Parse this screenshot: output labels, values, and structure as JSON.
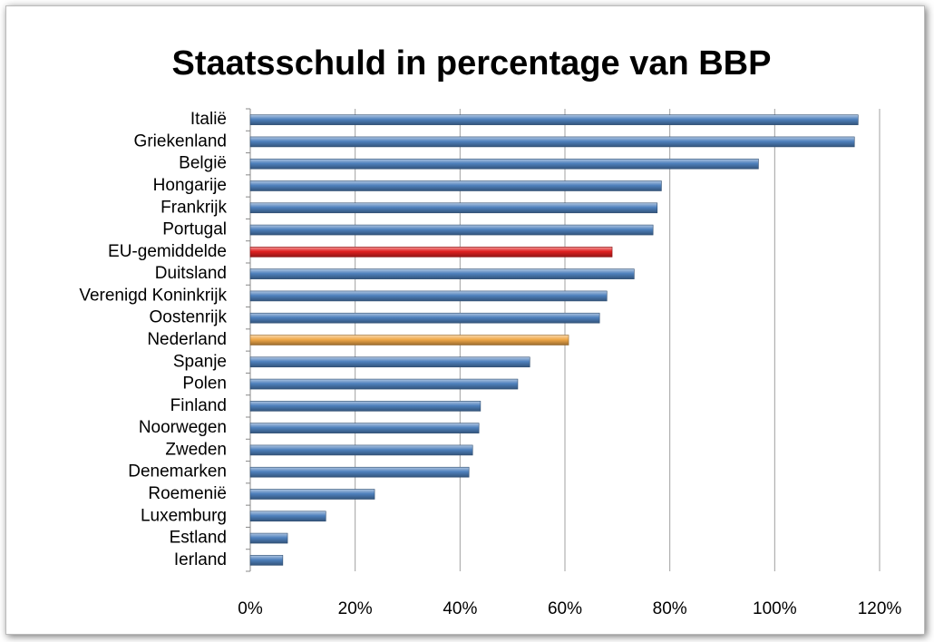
{
  "chart_data": {
    "type": "barh",
    "title": "Staatsschuld in percentage van BBP",
    "categories": [
      "Italië",
      "Griekenland",
      "België",
      "Hongarije",
      "Frankrijk",
      "Portugal",
      "EU-gemiddelde",
      "Duitsland",
      "Verenigd Koninkrijk",
      "Oostenrijk",
      "Nederland",
      "Spanje",
      "Polen",
      "Finland",
      "Noorwegen",
      "Zweden",
      "Denemarken",
      "Roemenië",
      "Luxemburg",
      "Estland",
      "Ierland"
    ],
    "values": [
      115.9,
      115.2,
      96.9,
      78.4,
      77.6,
      76.8,
      69,
      73.2,
      68,
      66.6,
      60.7,
      53.3,
      51,
      43.9,
      43.6,
      42.4,
      41.7,
      23.7,
      14.4,
      7.1,
      6.2
    ],
    "colors": [
      "#4f81bd",
      "#4f81bd",
      "#4f81bd",
      "#4f81bd",
      "#4f81bd",
      "#4f81bd",
      "#e02020",
      "#4f81bd",
      "#4f81bd",
      "#4f81bd",
      "#f0a848",
      "#4f81bd",
      "#4f81bd",
      "#4f81bd",
      "#4f81bd",
      "#4f81bd",
      "#4f81bd",
      "#4f81bd",
      "#4f81bd",
      "#4f81bd",
      "#4f81bd"
    ],
    "xlim": [
      0,
      120
    ],
    "xticks": [
      {
        "value": 0,
        "label": "0%"
      },
      {
        "value": 20,
        "label": "20%"
      },
      {
        "value": 40,
        "label": "40%"
      },
      {
        "value": 60,
        "label": "60%"
      },
      {
        "value": 80,
        "label": "80%"
      },
      {
        "value": 100,
        "label": "100%"
      },
      {
        "value": 120,
        "label": "120%"
      }
    ],
    "grid": true
  }
}
